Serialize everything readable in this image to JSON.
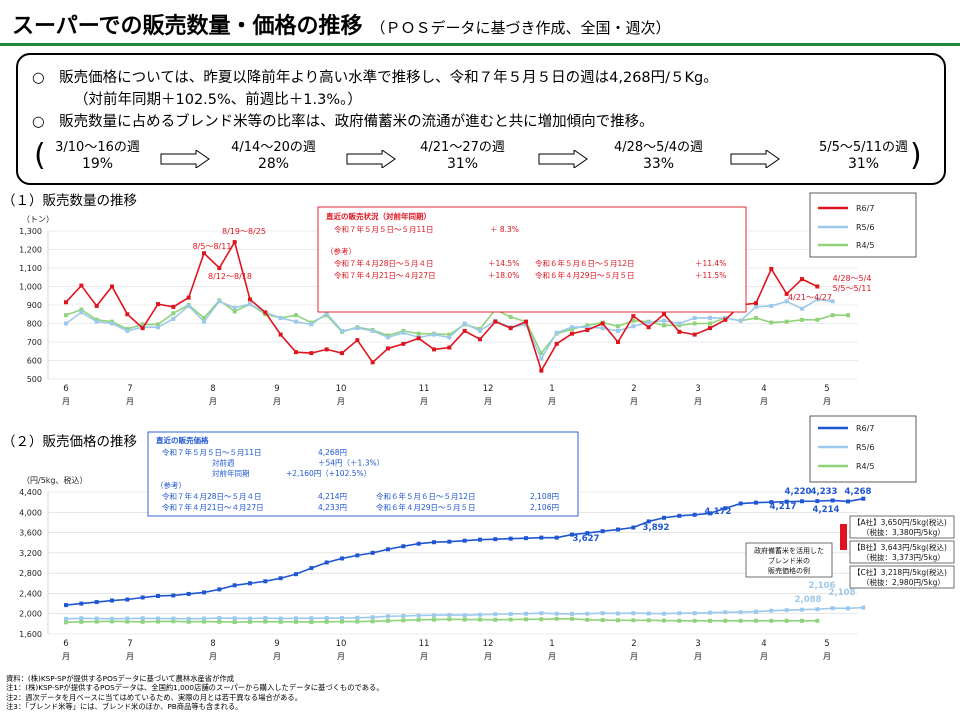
{
  "header": {
    "title": "スーパーでの販売数量・価格の推移",
    "subtitle": "（ＰＯＳデータに基づき作成、全国・週次）"
  },
  "summary": {
    "line1": "○　販売価格については、昨夏以降前年より高い水準で推移し、令和７年５月５日の週は4,268円/５Kg。",
    "line2": "（対前年同期＋102.5%、前週比＋1.3%。）",
    "line3": "○　販売数量に占めるブレンド米等の比率は、政府備蓄米の流通が進むと共に増加傾向で推移。",
    "stages": [
      {
        "dates": "3/10～16の週",
        "pct": "19%"
      },
      {
        "dates": "4/14～20の週",
        "pct": "28%"
      },
      {
        "dates": "4/21～27の週",
        "pct": "31%"
      },
      {
        "dates": "4/28～5/4の週",
        "pct": "33%"
      },
      {
        "dates": "5/5～5/11の週",
        "pct": "31%"
      }
    ]
  },
  "section1": {
    "title": "（１）販売数量の推移"
  },
  "section2": {
    "title": "（２）販売価格の推移"
  },
  "box1": {
    "title": "直近の販売状況（対前年同期）",
    "line1_label": "令和７年５月５日～５月11日",
    "line1_value": "＋ 8.3%",
    "ref_label": "（参考）",
    "ref": [
      {
        "a": "令和７年４月28日～５月４日",
        "b": "＋14.5%",
        "c": "令和６年５月６日～５月12日",
        "d": "＋11.4%"
      },
      {
        "a": "令和７年４月21日～４月27日",
        "b": "＋18.0%",
        "c": "令和６年４月29日～５月５日",
        "d": "＋11.5%"
      }
    ]
  },
  "box2": {
    "title": "直近の販売価格",
    "rows": [
      {
        "a": "令和７年５月５日～５月11日",
        "b": "4,268円"
      },
      {
        "a": "対前週",
        "b": "＋54円（＋1.3%）"
      },
      {
        "a": "対前年同期",
        "b": "+2,160円（+102.5%）"
      }
    ],
    "ref_label": "（参考）",
    "ref": [
      {
        "a": "令和７年４月28日～５月４日",
        "b": "4,214円",
        "c": "令和６年５月６日～５月12日",
        "d": "2,108円"
      },
      {
        "a": "令和７年４月21日～４月27日",
        "b": "4,233円",
        "c": "令和６年４月29日～５月５日",
        "d": "2,106円"
      }
    ]
  },
  "side_box": {
    "note": [
      "政府備蓄米を活用した",
      "ブレンド米の",
      "販売価格の例"
    ],
    "companies": [
      {
        "l1": "【A社】3,650円/5kg(税込)",
        "l2": "（税抜：3,380円/5kg）"
      },
      {
        "l1": "【B社】3,643円/5kg(税込)",
        "l2": "（税抜：3,373円/5kg）"
      },
      {
        "l1": "【C社】3,218円/5kg(税込)",
        "l2": "（税抜：2,980円/5kg）"
      }
    ]
  },
  "notes": [
    "資料：(株)KSP-SPが提供するPOSデータに基づいて農林水産省が作成",
    "注1：(株)KSP-SPが提供するPOSデータは、全国約1,000店舗のスーパーから購入したデータに基づくものである。",
    "注2：週次データを月ベースに当てはめているため、実際の月とは若干異なる場合がある。",
    "注3：「ブレンド米等」には、ブレンド米のほか、PB商品等も含まれる。"
  ],
  "colors": {
    "r67": "#e0141e",
    "r56": "#9dc9ec",
    "r45": "#8fd47a",
    "price": "#1f56d4",
    "green": "#1f8a3b"
  },
  "chart_data": [
    {
      "type": "line",
      "ylabel": "（トン）",
      "ylim": [
        500,
        1300
      ],
      "yticks": [
        "500",
        "600",
        "700",
        "800",
        "900",
        "1,000",
        "1,100",
        "1,200",
        "1,300"
      ],
      "x_month_labels": [
        "6\n月",
        "7\n月",
        "8\n月",
        "9\n月",
        "10\n月",
        "11\n月",
        "12\n月",
        "1\n月",
        "2\n月",
        "3\n月",
        "4\n月",
        "5\n月"
      ],
      "legend": [
        "R6/7",
        "R5/6",
        "R4/5"
      ],
      "annotations": [
        "8/5～8/11",
        "8/12～8/18",
        "8/19～8/25",
        "4/21～4/27",
        "4/28～5/4",
        "5/5～5/11"
      ],
      "series": [
        {
          "name": "R6/7",
          "values": [
            915,
            1005,
            895,
            1000,
            850,
            775,
            905,
            890,
            940,
            1180,
            1100,
            1240,
            930,
            860,
            740,
            645,
            640,
            660,
            640,
            710,
            590,
            665,
            690,
            720,
            660,
            670,
            760,
            715,
            810,
            775,
            810,
            545,
            690,
            745,
            765,
            800,
            700,
            840,
            780,
            850,
            755,
            740,
            775,
            820,
            900,
            910,
            1095,
            960,
            1040,
            1000
          ]
        },
        {
          "name": "R5/6",
          "values": [
            800,
            860,
            810,
            800,
            760,
            780,
            780,
            825,
            895,
            810,
            920,
            885,
            905,
            860,
            830,
            810,
            795,
            855,
            760,
            775,
            760,
            725,
            750,
            725,
            740,
            725,
            800,
            760,
            815,
            780,
            795,
            610,
            750,
            780,
            780,
            775,
            760,
            785,
            805,
            815,
            800,
            830,
            830,
            830,
            815,
            890,
            895,
            920,
            880,
            930,
            920
          ]
        },
        {
          "name": "R4/5",
          "values": [
            845,
            875,
            820,
            810,
            770,
            795,
            795,
            855,
            900,
            830,
            925,
            865,
            905,
            850,
            830,
            845,
            805,
            845,
            755,
            780,
            765,
            735,
            760,
            745,
            745,
            740,
            795,
            770,
            875,
            835,
            810,
            640,
            745,
            770,
            790,
            805,
            785,
            815,
            810,
            790,
            790,
            800,
            800,
            830,
            815,
            830,
            805,
            810,
            820,
            820,
            845,
            845
          ]
        }
      ]
    },
    {
      "type": "line",
      "ylabel": "（円/5kg、税込）",
      "ylim": [
        1600,
        4400
      ],
      "yticks": [
        "1,600",
        "2,000",
        "2,400",
        "2,800",
        "3,200",
        "3,600",
        "4,000",
        "4,400"
      ],
      "x_month_labels": [
        "6\n月",
        "7\n月",
        "8\n月",
        "9\n月",
        "10\n月",
        "11\n月",
        "12\n月",
        "1\n月",
        "2\n月",
        "3\n月",
        "4\n月",
        "5\n月"
      ],
      "legend": [
        "R6/7",
        "R5/6",
        "R4/5"
      ],
      "data_labels": [
        "3,627",
        "3,892",
        "4,172",
        "4,217",
        "4,220",
        "4,233",
        "4,214",
        "4,268",
        "2,088",
        "2,106",
        "2,108"
      ],
      "series": [
        {
          "name": "R6/7",
          "values": [
            2170,
            2200,
            2230,
            2260,
            2280,
            2320,
            2350,
            2360,
            2390,
            2420,
            2480,
            2560,
            2600,
            2640,
            2700,
            2780,
            2900,
            3010,
            3090,
            3150,
            3200,
            3270,
            3330,
            3380,
            3410,
            3420,
            3440,
            3460,
            3470,
            3480,
            3490,
            3500,
            3500,
            3560,
            3590,
            3627,
            3660,
            3700,
            3820,
            3892,
            3930,
            3950,
            3980,
            4080,
            4172,
            4190,
            4200,
            4210,
            4217,
            4220,
            4233,
            4214,
            4268
          ]
        },
        {
          "name": "R5/6",
          "values": [
            1900,
            1910,
            1905,
            1900,
            1905,
            1910,
            1905,
            1905,
            1900,
            1905,
            1915,
            1910,
            1905,
            1915,
            1905,
            1910,
            1910,
            1915,
            1915,
            1920,
            1930,
            1950,
            1955,
            1965,
            1970,
            1975,
            1970,
            1980,
            1990,
            1995,
            2000,
            2010,
            2000,
            1995,
            2000,
            2010,
            2005,
            2010,
            2005,
            2000,
            2010,
            2010,
            2020,
            2030,
            2030,
            2040,
            2060,
            2070,
            2080,
            2088,
            2108,
            2106,
            2120
          ]
        },
        {
          "name": "R4/5",
          "values": [
            1830,
            1840,
            1845,
            1850,
            1845,
            1840,
            1845,
            1850,
            1840,
            1845,
            1840,
            1835,
            1840,
            1845,
            1840,
            1840,
            1835,
            1840,
            1845,
            1845,
            1850,
            1860,
            1870,
            1880,
            1885,
            1890,
            1885,
            1885,
            1880,
            1885,
            1890,
            1890,
            1900,
            1900,
            1880,
            1875,
            1870,
            1870,
            1870,
            1865,
            1860,
            1860,
            1860,
            1860,
            1860,
            1860,
            1860,
            1860,
            1860,
            1860
          ]
        }
      ]
    }
  ]
}
